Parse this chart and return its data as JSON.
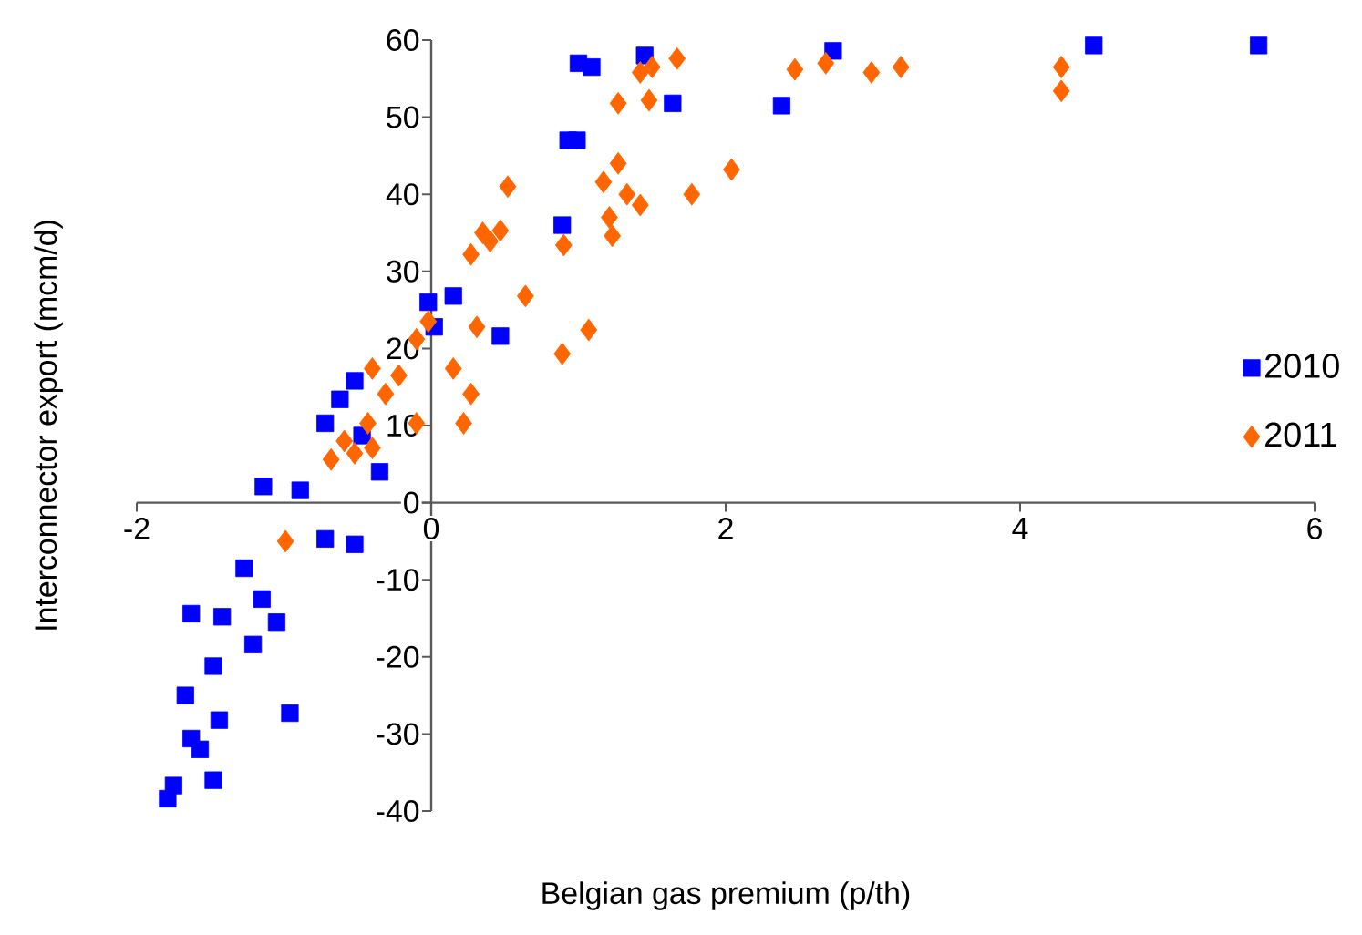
{
  "chart_data": {
    "type": "scatter",
    "xlabel": "Belgian gas premium (p/th)",
    "ylabel": "Interconnector export (mcm/d)",
    "xlim": [
      -2,
      6
    ],
    "ylim": [
      -40,
      60
    ],
    "xticks": [
      -2,
      0,
      2,
      4,
      6
    ],
    "yticks": [
      -40,
      -30,
      -20,
      -10,
      0,
      10,
      20,
      30,
      40,
      50,
      60
    ],
    "grid": false,
    "legend": "right",
    "series": [
      {
        "name": "2010",
        "color": "#0000ff",
        "marker": "square",
        "x": [
          5.62,
          4.5,
          2.38,
          2.73,
          1.64,
          1.09,
          0.99,
          0.89,
          1.45,
          0.93,
          1.0,
          0.47,
          -0.02,
          0.15,
          0.02,
          -0.52,
          -0.62,
          -0.72,
          -0.35,
          -0.47,
          -1.14,
          -0.89,
          -0.72,
          -0.52,
          -1.27,
          -1.15,
          -1.05,
          -1.63,
          -1.42,
          -1.21,
          -1.48,
          -1.67,
          -1.44,
          -1.63,
          -0.96,
          -1.57,
          -1.75,
          -1.48,
          -1.79
        ],
        "values": [
          59.3,
          59.3,
          51.5,
          58.6,
          51.8,
          56.5,
          47,
          36,
          58,
          47,
          57,
          21.6,
          26,
          26.8,
          22.8,
          15.8,
          13.4,
          10.3,
          4,
          8.7,
          2.1,
          1.6,
          -4.7,
          -5.4,
          -8.5,
          -12.5,
          -15.5,
          -14.4,
          -14.8,
          -18.4,
          -21.2,
          -25,
          -28.2,
          -30.6,
          -27.3,
          -32,
          -36.7,
          -36,
          -38.4
        ]
      },
      {
        "name": "2011",
        "color": "#ff6600",
        "marker": "diamond",
        "x": [
          4.28,
          4.28,
          3.19,
          2.99,
          2.68,
          2.47,
          2.04,
          1.77,
          1.67,
          1.5,
          1.42,
          1.48,
          1.27,
          1.27,
          1.17,
          1.33,
          1.42,
          1.21,
          1.23,
          0.9,
          1.07,
          0.89,
          0.52,
          0.4,
          0.47,
          0.27,
          0.35,
          0.64,
          0.31,
          -0.02,
          -0.1,
          0.15,
          0.27,
          0.22,
          -0.1,
          -0.22,
          -0.4,
          -0.31,
          -0.43,
          -0.59,
          -0.68,
          -0.52,
          -0.4,
          -0.99
        ],
        "values": [
          56.5,
          53.4,
          56.5,
          55.8,
          57,
          56.2,
          43.2,
          40,
          57.6,
          56.5,
          55.8,
          52.2,
          51.8,
          44,
          41.6,
          40,
          38.6,
          37,
          34.6,
          33.4,
          22.4,
          19.3,
          41,
          33.9,
          35.3,
          32.2,
          35,
          26.8,
          22.8,
          23.5,
          21.2,
          17.4,
          14.1,
          10.3,
          10.3,
          16.5,
          17.4,
          14.1,
          10.3,
          8,
          5.6,
          6.4,
          7.1,
          -5
        ]
      }
    ]
  }
}
